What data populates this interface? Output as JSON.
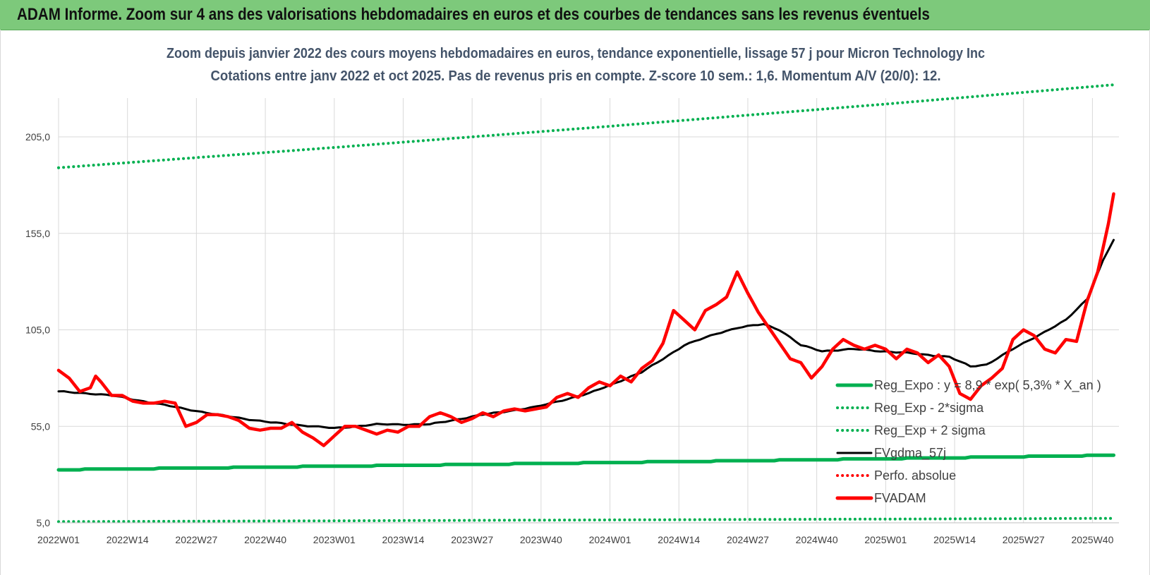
{
  "header": {
    "title": "ADAM Informe. Zoom sur 4 ans des valorisations hebdomadaires en euros et des courbes de tendances sans les revenus éventuels"
  },
  "chart_data": {
    "type": "line",
    "title": "Zoom depuis janvier 2022 des cours moyens hebdomadaires en euros, tendance exponentielle, lissage 57 j pour Micron Technology Inc",
    "subtitle": "Cotations entre janv 2022 et oct 2025. Pas de revenus pris en compte. Z-score 10 sem.: 1,6. Momentum A/V (20/0): 12.",
    "xlabel": "",
    "ylabel": "",
    "ylim": [
      5,
      205
    ],
    "yticks": [
      "205,0",
      "155,0",
      "105,0",
      "55,0",
      "5,0"
    ],
    "ytick_values": [
      205,
      155,
      105,
      55,
      5
    ],
    "xticks": [
      "2022W01",
      "2022W14",
      "2022W27",
      "2022W40",
      "2023W01",
      "2023W14",
      "2023W27",
      "2023W40",
      "2024W01",
      "2024W14",
      "2024W27",
      "2024W40",
      "2025W01",
      "2025W14",
      "2025W27",
      "2025W40"
    ],
    "xtick_index": [
      0,
      13,
      26,
      39,
      52,
      65,
      78,
      91,
      104,
      117,
      130,
      143,
      156,
      169,
      182,
      195
    ],
    "n_weeks": 200,
    "grid": true,
    "legend_position": "bottom-right",
    "series": [
      {
        "name": "Reg_Expo : y = 8,9 * exp( 5,3% * X_an )",
        "style": "solid",
        "color": "#00b050",
        "knots": [
          [
            0,
            32.5
          ],
          [
            52,
            34.3
          ],
          [
            104,
            36.2
          ],
          [
            156,
            38.2
          ],
          [
            199,
            40.0
          ]
        ]
      },
      {
        "name": "Reg_Exp - 2*sigma",
        "style": "dotted",
        "color": "#00b050",
        "knots": [
          [
            0,
            5.6
          ],
          [
            199,
            7.3
          ]
        ]
      },
      {
        "name": "Reg_Exp + 2 sigma",
        "style": "dotted",
        "color": "#00b050",
        "knots": [
          [
            0,
            189.0
          ],
          [
            52,
            199.5
          ],
          [
            104,
            210.5
          ],
          [
            156,
            222.0
          ],
          [
            199,
            232.0
          ]
        ]
      },
      {
        "name": "FVgdma_57j",
        "style": "solid",
        "color": "#000000",
        "knots": [
          [
            0,
            73
          ],
          [
            6,
            72
          ],
          [
            10,
            71
          ],
          [
            20,
            66
          ],
          [
            30,
            61
          ],
          [
            40,
            57
          ],
          [
            52,
            54
          ],
          [
            60,
            56
          ],
          [
            70,
            56
          ],
          [
            80,
            61
          ],
          [
            90,
            65
          ],
          [
            100,
            72
          ],
          [
            110,
            83
          ],
          [
            118,
            97
          ],
          [
            124,
            103
          ],
          [
            128,
            106
          ],
          [
            133,
            108
          ],
          [
            136,
            105
          ],
          [
            140,
            97
          ],
          [
            144,
            94
          ],
          [
            150,
            95
          ],
          [
            160,
            93
          ],
          [
            168,
            91
          ],
          [
            172,
            86
          ],
          [
            175,
            87
          ],
          [
            180,
            95
          ],
          [
            190,
            110
          ],
          [
            194,
            121
          ],
          [
            197,
            141
          ],
          [
            200,
            157
          ]
        ]
      },
      {
        "name": "Perfo. absolue",
        "style": "dotted",
        "color": "#ff0000",
        "knots": []
      },
      {
        "name": "FVADAM",
        "style": "solid",
        "color": "#ff0000",
        "knots": [
          [
            0,
            84
          ],
          [
            2,
            80
          ],
          [
            4,
            73
          ],
          [
            6,
            75
          ],
          [
            7,
            81
          ],
          [
            8,
            78
          ],
          [
            10,
            71
          ],
          [
            12,
            71
          ],
          [
            14,
            68
          ],
          [
            16,
            67
          ],
          [
            18,
            67
          ],
          [
            20,
            68
          ],
          [
            22,
            67
          ],
          [
            24,
            55
          ],
          [
            26,
            57
          ],
          [
            28,
            61
          ],
          [
            30,
            61
          ],
          [
            32,
            60
          ],
          [
            34,
            58
          ],
          [
            36,
            54
          ],
          [
            38,
            53
          ],
          [
            40,
            54
          ],
          [
            42,
            54
          ],
          [
            44,
            57
          ],
          [
            46,
            52
          ],
          [
            48,
            49
          ],
          [
            50,
            45
          ],
          [
            52,
            50
          ],
          [
            54,
            55
          ],
          [
            56,
            55
          ],
          [
            58,
            53
          ],
          [
            60,
            51
          ],
          [
            62,
            53
          ],
          [
            64,
            52
          ],
          [
            66,
            55
          ],
          [
            68,
            55
          ],
          [
            70,
            60
          ],
          [
            72,
            62
          ],
          [
            74,
            60
          ],
          [
            76,
            57
          ],
          [
            78,
            59
          ],
          [
            80,
            62
          ],
          [
            82,
            60
          ],
          [
            84,
            63
          ],
          [
            86,
            64
          ],
          [
            88,
            63
          ],
          [
            90,
            64
          ],
          [
            92,
            65
          ],
          [
            94,
            70
          ],
          [
            96,
            72
          ],
          [
            98,
            70
          ],
          [
            100,
            75
          ],
          [
            102,
            78
          ],
          [
            104,
            76
          ],
          [
            106,
            81
          ],
          [
            108,
            78
          ],
          [
            110,
            85
          ],
          [
            112,
            89
          ],
          [
            114,
            98
          ],
          [
            116,
            115
          ],
          [
            118,
            110
          ],
          [
            120,
            105
          ],
          [
            122,
            115
          ],
          [
            124,
            118
          ],
          [
            126,
            122
          ],
          [
            128,
            135
          ],
          [
            130,
            124
          ],
          [
            132,
            114
          ],
          [
            134,
            106
          ],
          [
            136,
            98
          ],
          [
            138,
            90
          ],
          [
            140,
            88
          ],
          [
            142,
            80
          ],
          [
            144,
            86
          ],
          [
            146,
            95
          ],
          [
            148,
            100
          ],
          [
            150,
            97
          ],
          [
            152,
            95
          ],
          [
            154,
            97
          ],
          [
            156,
            95
          ],
          [
            158,
            90
          ],
          [
            160,
            95
          ],
          [
            162,
            93
          ],
          [
            164,
            88
          ],
          [
            166,
            92
          ],
          [
            168,
            86
          ],
          [
            170,
            72
          ],
          [
            172,
            69
          ],
          [
            174,
            76
          ],
          [
            176,
            80
          ],
          [
            178,
            85
          ],
          [
            180,
            100
          ],
          [
            182,
            105
          ],
          [
            184,
            102
          ],
          [
            186,
            95
          ],
          [
            188,
            93
          ],
          [
            190,
            100
          ],
          [
            192,
            99
          ],
          [
            194,
            120
          ],
          [
            196,
            135
          ],
          [
            198,
            160
          ],
          [
            200,
            191
          ]
        ]
      }
    ]
  }
}
